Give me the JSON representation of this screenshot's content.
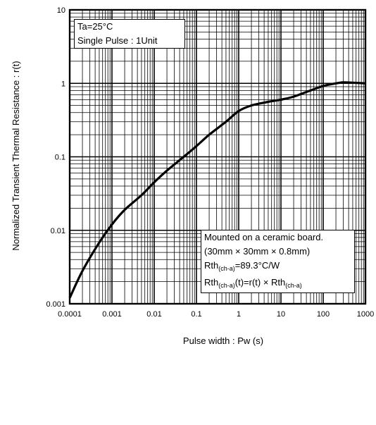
{
  "chart_data": {
    "type": "line",
    "title": "",
    "xlabel": "Pulse width : Pw (s)",
    "ylabel": "Normalized  Transient  Thermal  Resistance  :  r(t)",
    "x_scale": "log",
    "y_scale": "log",
    "xlim": [
      0.0001,
      1000
    ],
    "ylim": [
      0.001,
      10
    ],
    "grid": true,
    "x_ticks": [
      "0.0001",
      "0.001",
      "0.01",
      "0.1",
      "1",
      "10",
      "100",
      "1000"
    ],
    "y_ticks": [
      "0.001",
      "0.01",
      "0.1",
      "1",
      "10"
    ],
    "series": [
      {
        "x": [
          0.0001,
          0.0002,
          0.0005,
          0.001,
          0.002,
          0.005,
          0.01,
          0.02,
          0.05,
          0.1,
          0.2,
          0.5,
          1,
          2,
          5,
          10,
          20,
          50,
          100,
          200,
          300,
          500,
          1000
        ],
        "y": [
          0.0012,
          0.0028,
          0.0068,
          0.012,
          0.019,
          0.03,
          0.045,
          0.065,
          0.1,
          0.14,
          0.2,
          0.3,
          0.42,
          0.5,
          0.56,
          0.6,
          0.66,
          0.8,
          0.92,
          1.0,
          1.03,
          1.02,
          1.0
        ]
      }
    ],
    "annotations": {
      "top_left": [
        "Ta=25°C",
        "Single Pulse : 1Unit"
      ],
      "bottom_right": {
        "line1": "Mounted on a ceramic board.",
        "line2": "(30mm × 30mm × 0.8mm)",
        "line3": {
          "a": "Rth",
          "sub": "(ch-a)",
          "b": "=89.3°C/W"
        },
        "line4": {
          "a": "Rth",
          "sub1": "(ch-a)",
          "b": "(t)=r(t) × Rth",
          "sub2": "(ch-a)"
        }
      }
    }
  }
}
